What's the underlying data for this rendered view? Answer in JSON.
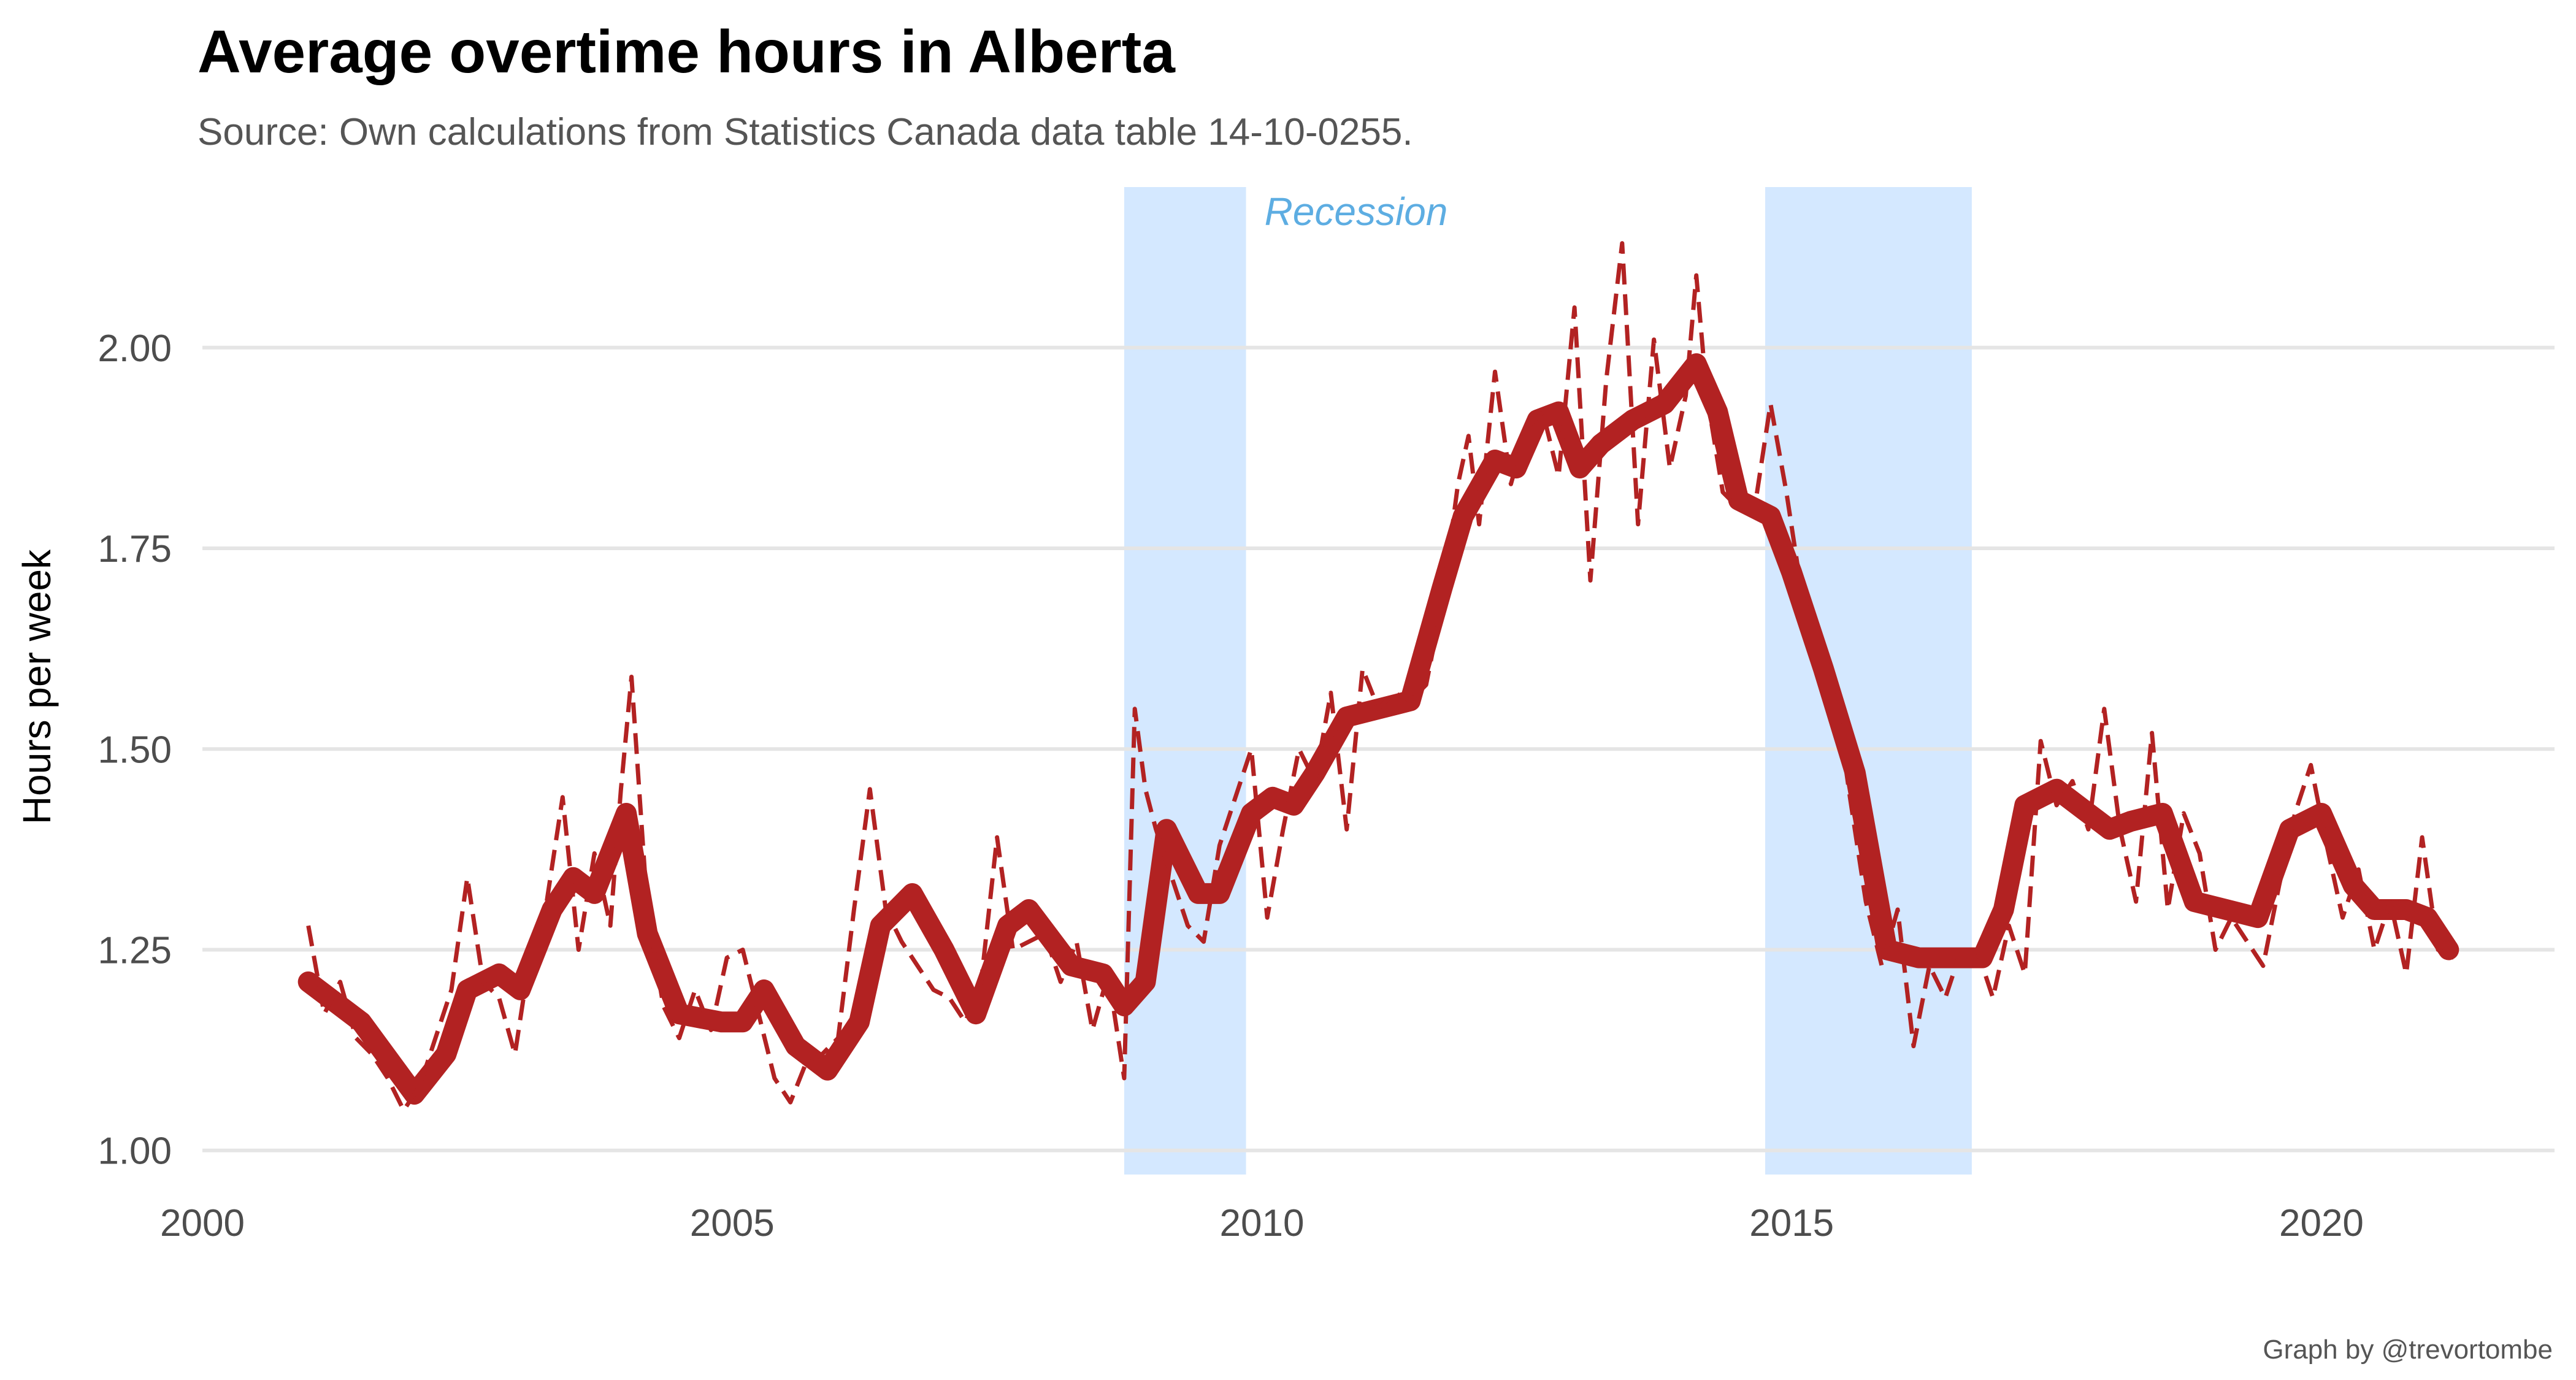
{
  "chart_data": {
    "type": "line",
    "title": "Average overtime hours in Alberta",
    "subtitle": "Source: Own calculations from Statistics Canada data table 14-10-0255.",
    "caption": "Graph by @trevortombe",
    "xlabel": "",
    "ylabel": "Hours per week",
    "xlim": [
      2000,
      2022.2
    ],
    "ylim": [
      0.97,
      2.2
    ],
    "x_ticks": [
      2000,
      2005,
      2010,
      2015,
      2020
    ],
    "x_tick_labels": [
      "2000",
      "2005",
      "2010",
      "2015",
      "2020"
    ],
    "y_ticks": [
      1.0,
      1.25,
      1.5,
      1.75,
      2.0
    ],
    "y_tick_labels": [
      "1.00",
      "1.25",
      "1.50",
      "1.75",
      "2.00"
    ],
    "grid": "horizontal",
    "colors": {
      "line": "#B22222",
      "shade": "#D4E8FF",
      "shade_label": "#5DADE2",
      "grid": "#E5E5E5"
    },
    "shaded_regions": [
      {
        "x0": 2008.7,
        "x1": 2009.85,
        "label": "Recession"
      },
      {
        "x0": 2014.75,
        "x1": 2016.7,
        "label": ""
      }
    ],
    "series": [
      {
        "style": "solid-thick",
        "x": [
          2001.0,
          2001.5,
          2002.0,
          2002.3,
          2002.5,
          2002.8,
          2003.0,
          2003.3,
          2003.5,
          2003.7,
          2004.0,
          2004.2,
          2004.5,
          2004.9,
          2005.1,
          2005.3,
          2005.6,
          2005.9,
          2006.2,
          2006.4,
          2006.7,
          2007.0,
          2007.3,
          2007.6,
          2007.8,
          2008.2,
          2008.5,
          2008.7,
          2008.9,
          2009.1,
          2009.4,
          2009.6,
          2009.9,
          2010.1,
          2010.3,
          2010.5,
          2010.8,
          2011.1,
          2011.4,
          2011.7,
          2011.9,
          2012.2,
          2012.4,
          2012.6,
          2012.8,
          2013.0,
          2013.2,
          2013.5,
          2013.8,
          2014.1,
          2014.3,
          2014.5,
          2014.8,
          2015.0,
          2015.3,
          2015.6,
          2015.9,
          2016.2,
          2016.5,
          2016.8,
          2017.0,
          2017.2,
          2017.5,
          2017.8,
          2018.0,
          2018.2,
          2018.5,
          2018.8,
          2019.1,
          2019.4,
          2019.7,
          2020.0,
          2020.3,
          2020.5,
          2020.8,
          2021.0,
          2021.2
        ],
        "values": [
          1.21,
          1.16,
          1.07,
          1.12,
          1.2,
          1.22,
          1.2,
          1.3,
          1.34,
          1.32,
          1.42,
          1.27,
          1.17,
          1.16,
          1.16,
          1.2,
          1.13,
          1.1,
          1.16,
          1.28,
          1.32,
          1.25,
          1.17,
          1.28,
          1.3,
          1.23,
          1.22,
          1.18,
          1.21,
          1.4,
          1.32,
          1.32,
          1.42,
          1.44,
          1.43,
          1.47,
          1.54,
          1.55,
          1.56,
          1.7,
          1.79,
          1.86,
          1.85,
          1.91,
          1.92,
          1.85,
          1.88,
          1.91,
          1.93,
          1.98,
          1.92,
          1.81,
          1.79,
          1.72,
          1.6,
          1.47,
          1.25,
          1.24,
          1.24,
          1.24,
          1.3,
          1.43,
          1.45,
          1.42,
          1.4,
          1.41,
          1.42,
          1.31,
          1.3,
          1.29,
          1.4,
          1.42,
          1.33,
          1.3,
          1.3,
          1.29,
          1.25
        ]
      },
      {
        "style": "dashed-thin",
        "x": [
          2001.0,
          2001.15,
          2001.3,
          2001.45,
          2001.6,
          2001.75,
          2001.9,
          2002.05,
          2002.2,
          2002.35,
          2002.5,
          2002.65,
          2002.8,
          2002.95,
          2003.1,
          2003.25,
          2003.4,
          2003.55,
          2003.7,
          2003.85,
          2003.95,
          2004.05,
          2004.2,
          2004.35,
          2004.5,
          2004.65,
          2004.8,
          2004.95,
          2005.1,
          2005.25,
          2005.4,
          2005.55,
          2005.7,
          2005.85,
          2006.0,
          2006.15,
          2006.3,
          2006.45,
          2006.6,
          2006.75,
          2006.9,
          2007.05,
          2007.2,
          2007.35,
          2007.5,
          2007.65,
          2007.8,
          2007.95,
          2008.1,
          2008.25,
          2008.4,
          2008.55,
          2008.7,
          2008.8,
          2008.9,
          2009.0,
          2009.15,
          2009.3,
          2009.45,
          2009.6,
          2009.75,
          2009.9,
          2010.05,
          2010.2,
          2010.35,
          2010.5,
          2010.65,
          2010.8,
          2010.95,
          2011.1,
          2011.25,
          2011.4,
          2011.55,
          2011.7,
          2011.85,
          2011.95,
          2012.05,
          2012.2,
          2012.35,
          2012.5,
          2012.65,
          2012.8,
          2012.95,
          2013.1,
          2013.25,
          2013.4,
          2013.55,
          2013.7,
          2013.85,
          2014.0,
          2014.1,
          2014.2,
          2014.35,
          2014.5,
          2014.65,
          2014.8,
          2014.95,
          2015.1,
          2015.25,
          2015.4,
          2015.55,
          2015.7,
          2015.85,
          2016.0,
          2016.15,
          2016.3,
          2016.45,
          2016.6,
          2016.75,
          2016.9,
          2017.05,
          2017.2,
          2017.35,
          2017.5,
          2017.65,
          2017.8,
          2017.95,
          2018.1,
          2018.25,
          2018.4,
          2018.55,
          2018.7,
          2018.85,
          2019.0,
          2019.15,
          2019.3,
          2019.45,
          2019.6,
          2019.75,
          2019.9,
          2020.05,
          2020.2,
          2020.35,
          2020.5,
          2020.65,
          2020.8,
          2020.95,
          2021.1,
          2021.25
        ],
        "values": [
          1.28,
          1.17,
          1.21,
          1.14,
          1.12,
          1.09,
          1.05,
          1.08,
          1.14,
          1.2,
          1.34,
          1.21,
          1.19,
          1.12,
          1.25,
          1.31,
          1.44,
          1.25,
          1.37,
          1.28,
          1.45,
          1.59,
          1.3,
          1.18,
          1.14,
          1.2,
          1.15,
          1.24,
          1.25,
          1.17,
          1.09,
          1.06,
          1.11,
          1.12,
          1.14,
          1.3,
          1.45,
          1.3,
          1.26,
          1.23,
          1.2,
          1.19,
          1.16,
          1.21,
          1.39,
          1.25,
          1.26,
          1.27,
          1.21,
          1.26,
          1.15,
          1.22,
          1.09,
          1.55,
          1.45,
          1.4,
          1.34,
          1.28,
          1.26,
          1.38,
          1.44,
          1.5,
          1.29,
          1.4,
          1.5,
          1.46,
          1.57,
          1.4,
          1.6,
          1.55,
          1.57,
          1.56,
          1.58,
          1.68,
          1.83,
          1.89,
          1.78,
          1.97,
          1.83,
          1.9,
          1.92,
          1.84,
          2.05,
          1.71,
          1.96,
          2.13,
          1.78,
          2.01,
          1.85,
          1.94,
          2.09,
          1.94,
          1.82,
          1.8,
          1.8,
          1.93,
          1.82,
          1.69,
          1.65,
          1.58,
          1.44,
          1.31,
          1.23,
          1.3,
          1.13,
          1.23,
          1.19,
          1.25,
          1.25,
          1.19,
          1.28,
          1.22,
          1.51,
          1.43,
          1.46,
          1.4,
          1.55,
          1.4,
          1.31,
          1.52,
          1.3,
          1.42,
          1.37,
          1.25,
          1.29,
          1.26,
          1.23,
          1.33,
          1.42,
          1.48,
          1.38,
          1.29,
          1.35,
          1.25,
          1.31,
          1.22,
          1.39,
          1.25,
          1.24
        ]
      }
    ]
  }
}
